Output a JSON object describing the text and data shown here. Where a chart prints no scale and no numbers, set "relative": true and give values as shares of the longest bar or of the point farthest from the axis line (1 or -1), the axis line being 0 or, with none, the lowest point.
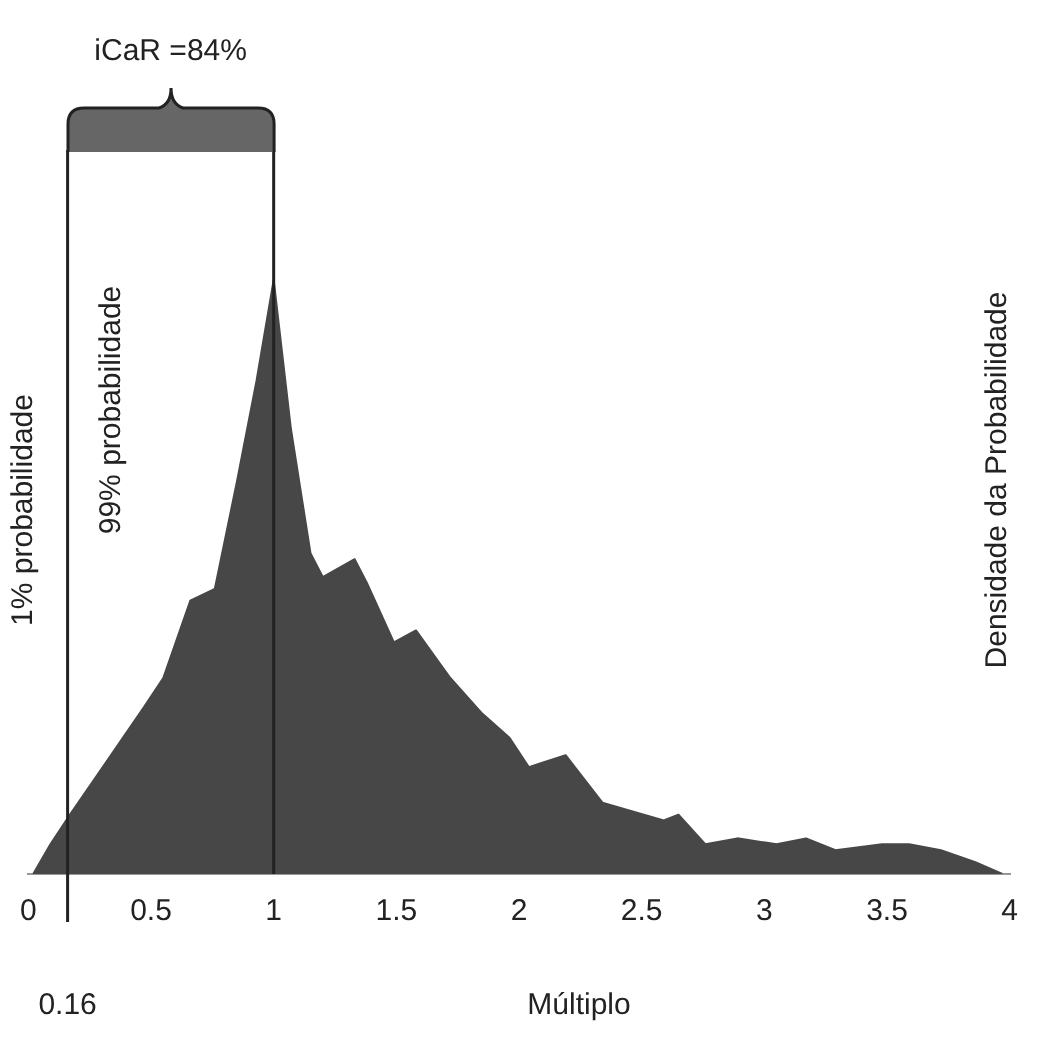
{
  "chart_data": {
    "type": "area",
    "relative": true,
    "xlabel": "Múltiplo",
    "ylabel": "Densidade da Probabilidade",
    "color": "#474747",
    "x": [
      0.02,
      0.09,
      0.17,
      0.47,
      0.55,
      0.66,
      0.76,
      0.85,
      0.93,
      1,
      1.07,
      1.15,
      1.2,
      1.33,
      1.38,
      1.49,
      1.58,
      1.72,
      1.85,
      1.96,
      2.04,
      2.19,
      2.34,
      2.59,
      2.65,
      2.76,
      2.89,
      3.05,
      3.17,
      3.29,
      3.48,
      3.59,
      3.72,
      3.86,
      3.97
    ],
    "values": [
      0,
      0.05,
      0.1,
      0.28,
      0.33,
      0.46,
      0.48,
      0.66,
      0.83,
      1,
      0.75,
      0.54,
      0.5,
      0.53,
      0.49,
      0.39,
      0.41,
      0.33,
      0.27,
      0.23,
      0.18,
      0.2,
      0.12,
      0.09,
      0.1,
      0.05,
      0.06,
      0.05,
      0.06,
      0.04,
      0.05,
      0.05,
      0.04,
      0.02,
      0
    ],
    "xlim": [
      0,
      4
    ],
    "xticks": [
      0,
      0.5,
      1,
      1.5,
      2,
      2.5,
      3,
      3.5,
      4
    ],
    "ref_lines": [
      {
        "axis": "x",
        "value": 0.16,
        "label": "0.16",
        "color": "#222222"
      },
      {
        "axis": "x",
        "value": 1,
        "color": "#222222"
      }
    ],
    "annotations": [
      "iCaR =84%",
      "1% probabilidade",
      "99% probabilidade"
    ],
    "grid": false,
    "legend": false
  }
}
